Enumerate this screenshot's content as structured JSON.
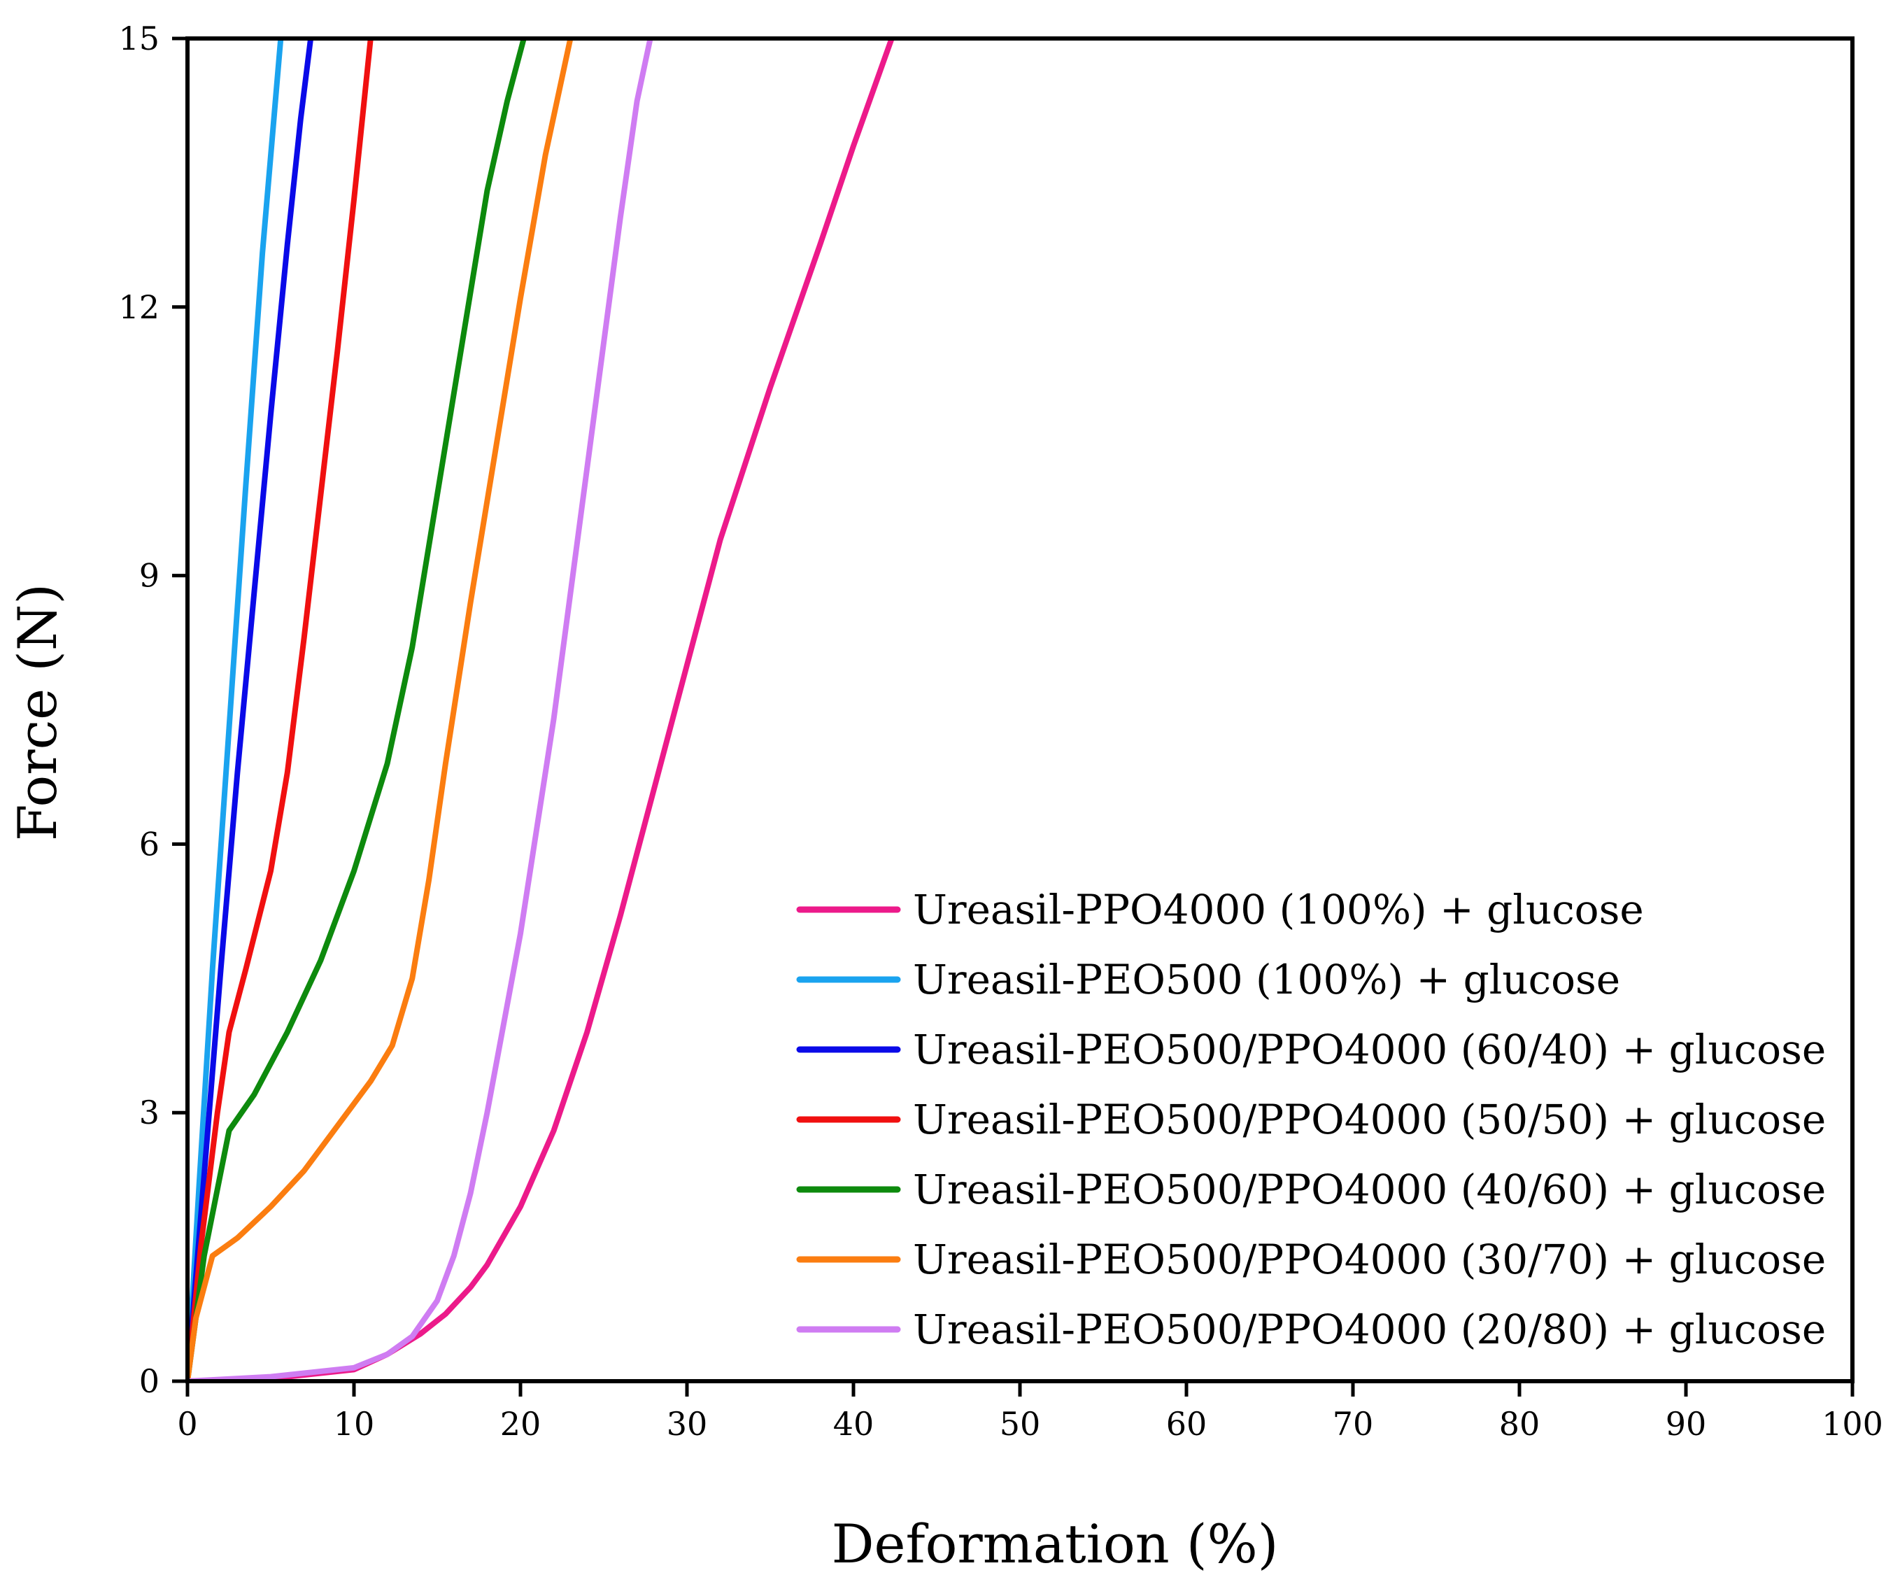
{
  "chart_data": {
    "type": "line",
    "title": "",
    "xlabel": "Deformation (%)",
    "ylabel": "Force (N)",
    "xlim": [
      0,
      100
    ],
    "ylim": [
      0,
      15
    ],
    "xticks": [
      "0",
      "10",
      "20",
      "30",
      "40",
      "50",
      "60",
      "70",
      "80",
      "90",
      "100"
    ],
    "yticks": [
      "0",
      "3",
      "6",
      "9",
      "12",
      "15"
    ],
    "grid": false,
    "legend_position": "bottom-right",
    "series": [
      {
        "name": "Ureasil-PPO4000 (100%) + glucose",
        "color": "#ec1a8a",
        "x": [
          0,
          5,
          10,
          12,
          14,
          15.5,
          17,
          18,
          20,
          22,
          24,
          26,
          28,
          30,
          32,
          35,
          38,
          40,
          42.3
        ],
        "y": [
          0,
          0.03,
          0.13,
          0.3,
          0.53,
          0.75,
          1.05,
          1.3,
          1.95,
          2.8,
          3.9,
          5.2,
          6.6,
          8.0,
          9.4,
          11.1,
          12.7,
          13.8,
          15.0
        ]
      },
      {
        "name": "Ureasil-PEO500 (100%) + glucose",
        "color": "#1aa3ef",
        "x": [
          0,
          0.7,
          1.5,
          2.5,
          3.5,
          4.5,
          5.6
        ],
        "y": [
          0,
          2.2,
          4.6,
          7.3,
          10.0,
          12.6,
          15.0
        ]
      },
      {
        "name": "Ureasil-PEO500/PPO4000 (60/40) + glucose",
        "color": "#0a0ae8",
        "x": [
          0,
          1,
          2,
          3,
          4,
          5,
          6,
          6.8,
          7.4
        ],
        "y": [
          0,
          2.3,
          4.6,
          6.8,
          8.8,
          10.8,
          12.7,
          14.1,
          15.0
        ]
      },
      {
        "name": "Ureasil-PEO500/PPO4000 (50/50) + glucose",
        "color": "#f01010",
        "x": [
          0,
          0.8,
          1.8,
          2.5,
          3.5,
          5,
          6,
          7,
          8,
          9,
          10,
          11
        ],
        "y": [
          0,
          1.5,
          3.0,
          3.9,
          4.6,
          5.7,
          6.8,
          8.3,
          9.9,
          11.5,
          13.2,
          15.0
        ]
      },
      {
        "name": "Ureasil-PEO500/PPO4000 (40/60) + glucose",
        "color": "#0d8a0d",
        "x": [
          0,
          1,
          2.5,
          4,
          6,
          8,
          10,
          12,
          13.5,
          15,
          16.5,
          18,
          19.2,
          20.2
        ],
        "y": [
          0,
          1.4,
          2.8,
          3.2,
          3.9,
          4.7,
          5.7,
          6.9,
          8.2,
          9.9,
          11.6,
          13.3,
          14.3,
          15.0
        ]
      },
      {
        "name": "Ureasil-PEO500/PPO4000 (30/70) + glucose",
        "color": "#fb7d10",
        "x": [
          0,
          0.5,
          1.5,
          3,
          5,
          7,
          9,
          11,
          12.3,
          13.5,
          14.5,
          15.5,
          17,
          18.5,
          20,
          21.5,
          23
        ],
        "y": [
          0,
          0.7,
          1.4,
          1.6,
          1.95,
          2.35,
          2.85,
          3.35,
          3.75,
          4.5,
          5.6,
          6.9,
          8.7,
          10.4,
          12.1,
          13.7,
          15.0
        ]
      },
      {
        "name": "Ureasil-PEO500/PPO4000 (20/80) + glucose",
        "color": "#cf7cf2",
        "x": [
          0,
          5,
          10,
          12,
          13.5,
          15,
          16,
          17,
          18,
          19,
          20,
          21,
          22,
          23,
          24,
          25,
          26,
          27,
          27.8
        ],
        "y": [
          0,
          0.05,
          0.15,
          0.3,
          0.5,
          0.9,
          1.4,
          2.1,
          3.0,
          4.0,
          5.0,
          6.2,
          7.4,
          8.8,
          10.2,
          11.6,
          13.0,
          14.3,
          15.0
        ]
      }
    ]
  }
}
